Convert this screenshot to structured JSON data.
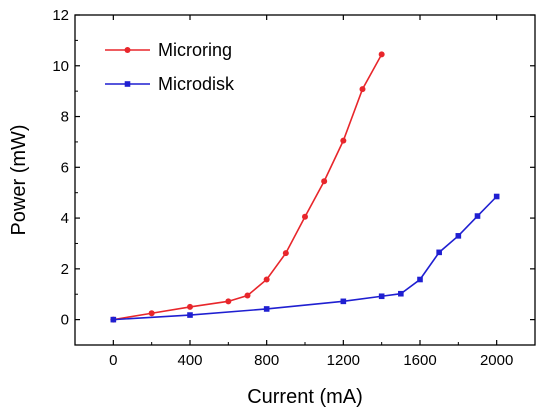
{
  "chart_data": {
    "type": "line",
    "title": "",
    "xlabel": "Current (mA)",
    "ylabel": "Power (mW)",
    "xlim": [
      -200,
      2200
    ],
    "ylim": [
      -1,
      12
    ],
    "xticks": [
      0,
      400,
      800,
      1200,
      1600,
      2000
    ],
    "yticks": [
      0,
      2,
      4,
      6,
      8,
      10,
      12
    ],
    "grid": false,
    "legend": "top-left",
    "series": [
      {
        "name": "Microring",
        "color": "#e8262b",
        "marker": "circle",
        "x": [
          0,
          200,
          400,
          600,
          700,
          800,
          900,
          1000,
          1100,
          1200,
          1300,
          1400
        ],
        "y": [
          0,
          0.25,
          0.5,
          0.72,
          0.95,
          1.58,
          2.62,
          4.05,
          5.45,
          7.05,
          9.08,
          10.45
        ]
      },
      {
        "name": "Microdisk",
        "color": "#1f1fd1",
        "marker": "square",
        "x": [
          0,
          400,
          800,
          1200,
          1400,
          1500,
          1600,
          1700,
          1800,
          1900,
          2000
        ],
        "y": [
          0,
          0.18,
          0.42,
          0.72,
          0.92,
          1.02,
          1.58,
          2.65,
          3.3,
          4.08,
          4.85
        ]
      }
    ]
  }
}
